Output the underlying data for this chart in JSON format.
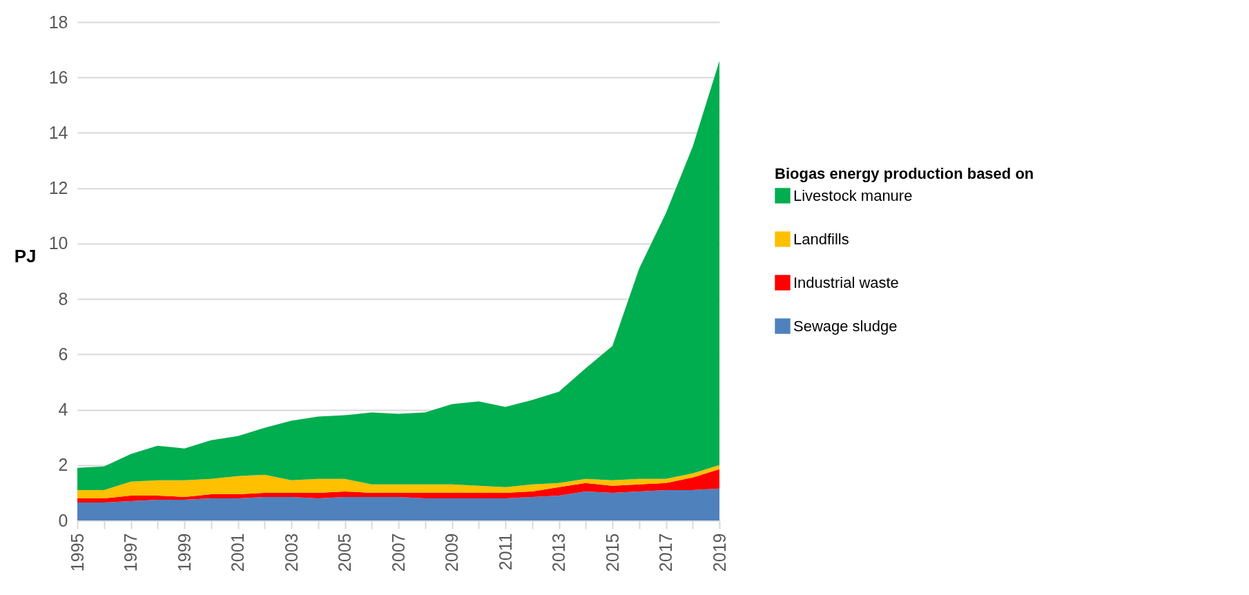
{
  "chart_data": {
    "type": "area",
    "stacked": true,
    "ylabel": "PJ",
    "legend_title": "Biogas energy production based on",
    "legend": "right",
    "grid": "y",
    "x": [
      1995,
      1996,
      1997,
      1998,
      1999,
      2000,
      2001,
      2002,
      2003,
      2004,
      2005,
      2006,
      2007,
      2008,
      2009,
      2010,
      2011,
      2012,
      2013,
      2014,
      2015,
      2016,
      2017,
      2018,
      2019
    ],
    "series": [
      {
        "name": "Sewage sludge",
        "color": "#4f81bd",
        "values": [
          0.65,
          0.65,
          0.7,
          0.75,
          0.75,
          0.8,
          0.8,
          0.85,
          0.85,
          0.8,
          0.85,
          0.85,
          0.85,
          0.8,
          0.8,
          0.8,
          0.8,
          0.85,
          0.9,
          1.05,
          1.0,
          1.05,
          1.1,
          1.1,
          1.15
        ]
      },
      {
        "name": "Industrial waste",
        "color": "#ff0000",
        "values": [
          0.15,
          0.15,
          0.2,
          0.15,
          0.1,
          0.15,
          0.15,
          0.15,
          0.15,
          0.2,
          0.2,
          0.15,
          0.15,
          0.2,
          0.2,
          0.2,
          0.2,
          0.2,
          0.3,
          0.3,
          0.25,
          0.25,
          0.25,
          0.45,
          0.7
        ]
      },
      {
        "name": "Landfills",
        "color": "#ffc000",
        "values": [
          0.3,
          0.3,
          0.5,
          0.55,
          0.6,
          0.55,
          0.65,
          0.65,
          0.45,
          0.5,
          0.45,
          0.3,
          0.3,
          0.3,
          0.3,
          0.25,
          0.2,
          0.25,
          0.15,
          0.15,
          0.2,
          0.2,
          0.15,
          0.15,
          0.15
        ]
      },
      {
        "name": "Livestock manure",
        "color": "#00ad4f",
        "values": [
          0.8,
          0.85,
          1.0,
          1.25,
          1.15,
          1.4,
          1.45,
          1.7,
          2.15,
          2.25,
          2.3,
          2.6,
          2.55,
          2.6,
          2.9,
          3.05,
          2.9,
          3.05,
          3.3,
          4.0,
          4.85,
          7.6,
          9.6,
          11.8,
          14.6
        ]
      }
    ],
    "xlim": [
      1995,
      2019
    ],
    "xticks": [
      1995,
      {
        "value": 1996,
        "label": null
      },
      1997,
      {
        "value": 1998,
        "label": null
      },
      1999,
      {
        "value": 2000,
        "label": null
      },
      2001,
      {
        "value": 2002,
        "label": null
      },
      2003,
      {
        "value": 2004,
        "label": null
      },
      2005,
      {
        "value": 2006,
        "label": null
      },
      2007,
      {
        "value": 2008,
        "label": null
      },
      2009,
      {
        "value": 2010,
        "label": null
      },
      2011,
      {
        "value": 2012,
        "label": null
      },
      2013,
      {
        "value": 2014,
        "label": null
      },
      2015,
      {
        "value": 2016,
        "label": null
      },
      2017,
      {
        "value": 2018,
        "label": null
      },
      2019
    ],
    "ylim": [
      0,
      18
    ],
    "yticks": [
      0,
      2,
      4,
      6,
      8,
      10,
      12,
      14,
      16,
      18
    ]
  }
}
